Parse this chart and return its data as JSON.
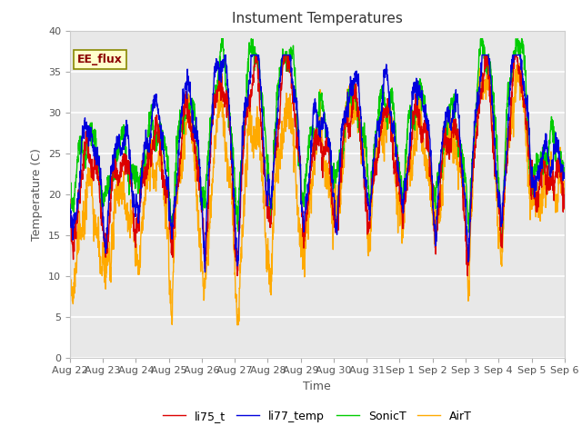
{
  "title": "Instument Temperatures",
  "xlabel": "Time",
  "ylabel": "Temperature (C)",
  "ylim": [
    0,
    40
  ],
  "background_color": "#e8e8e8",
  "figure_color": "#ffffff",
  "grid_color": "#ffffff",
  "annotation_text": "EE_flux",
  "annotation_bg": "#ffffcc",
  "annotation_border": "#888800",
  "annotation_text_color": "#8B0000",
  "line_colors": {
    "li75_t": "#dd0000",
    "li77_temp": "#0000dd",
    "SonicT": "#00cc00",
    "AirT": "#ffaa00"
  },
  "line_labels": [
    "li75_t",
    "li77_temp",
    "SonicT",
    "AirT"
  ],
  "xtick_labels": [
    "Aug 22",
    "Aug 23",
    "Aug 24",
    "Aug 25",
    "Aug 26",
    "Aug 27",
    "Aug 28",
    "Aug 29",
    "Aug 30",
    "Aug 31",
    "Sep 1",
    "Sep 2",
    "Sep 3",
    "Sep 4",
    "Sep 5",
    "Sep 6"
  ],
  "num_days": 15,
  "samples_per_day": 144
}
